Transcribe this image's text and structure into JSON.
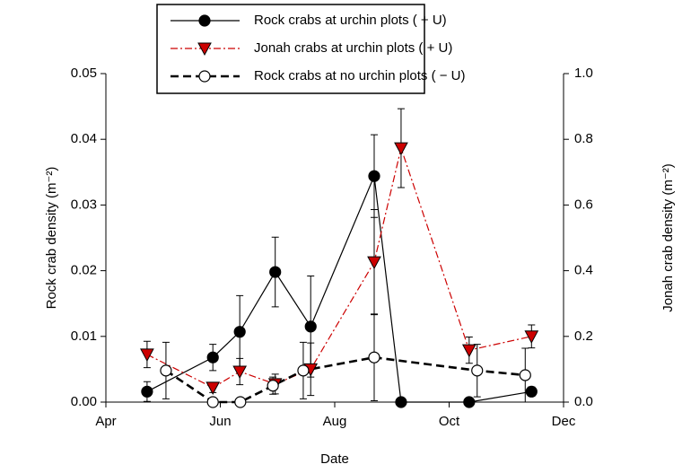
{
  "chart_data": {
    "type": "line",
    "xlabel": "Date",
    "ylabel": "Rock crab density (m⁻²)",
    "y2label": "Jonah crab density (m⁻²)",
    "xlim": [
      4,
      12
    ],
    "xticks": [
      {
        "value": 4,
        "label": "Apr"
      },
      {
        "value": 6,
        "label": "Jun"
      },
      {
        "value": 8,
        "label": "Aug"
      },
      {
        "value": 10,
        "label": "Oct"
      },
      {
        "value": 12,
        "label": "Dec"
      }
    ],
    "ylim": [
      0,
      0.05
    ],
    "yticks": [
      {
        "value": 0,
        "label": "0.00"
      },
      {
        "value": 0.01,
        "label": "0.01"
      },
      {
        "value": 0.02,
        "label": "0.02"
      },
      {
        "value": 0.03,
        "label": "0.03"
      },
      {
        "value": 0.04,
        "label": "0.04"
      },
      {
        "value": 0.05,
        "label": "0.05"
      }
    ],
    "y2lim": [
      0,
      1
    ],
    "y2ticks": [
      {
        "value": 0,
        "label": "0.0"
      },
      {
        "value": 0.2,
        "label": "0.2"
      },
      {
        "value": 0.4,
        "label": "0.4"
      },
      {
        "value": 0.6,
        "label": "0.6"
      },
      {
        "value": 0.8,
        "label": "0.8"
      },
      {
        "value": 1,
        "label": "1.0"
      }
    ],
    "series": [
      {
        "name": "Rock crabs at urchin plots ( + U)",
        "color": "#000000",
        "marker": "circle-filled",
        "line": "solid",
        "x": [
          4.72,
          5.87,
          6.34,
          6.96,
          7.58,
          8.69,
          9.16,
          10.35,
          11.44
        ],
        "values": [
          0.0016,
          0.0068,
          0.0107,
          0.0198,
          0.0115,
          0.0344,
          0,
          0,
          0.0016
        ],
        "errors": [
          0.0015,
          0.002,
          0.0055,
          0.0053,
          0.0077,
          0.0063,
          0,
          0,
          0.0007
        ]
      },
      {
        "name": "Jonah crabs at urchin plots ( + U)",
        "color": "#cc0000",
        "marker": "triangle-down",
        "line": "dashdot",
        "axis": "y2",
        "x": [
          4.72,
          5.87,
          6.34,
          6.96,
          7.58,
          8.69,
          9.16,
          10.35,
          11.44
        ],
        "values": [
          0.145,
          0.044,
          0.093,
          0.055,
          0.1,
          0.426,
          0.773,
          0.158,
          0.2
        ],
        "errors": [
          0.04,
          0.015,
          0.04,
          0.03,
          0.08,
          0.16,
          0.12,
          0.04,
          0.035
        ]
      },
      {
        "name": "Rock crabs at no urchin plots ( − U)",
        "color": "#000000",
        "marker": "circle-open",
        "line": "dashed",
        "x": [
          5.05,
          5.87,
          6.35,
          6.92,
          7.45,
          8.69,
          10.49,
          11.33
        ],
        "values": [
          0.0048,
          0,
          0,
          0.0025,
          0.0048,
          0.0068,
          0.0048,
          0.0041
        ],
        "errors": [
          0.0043,
          0,
          0,
          0.0013,
          0.0043,
          0.0066,
          0.004,
          0.0041
        ]
      }
    ]
  }
}
